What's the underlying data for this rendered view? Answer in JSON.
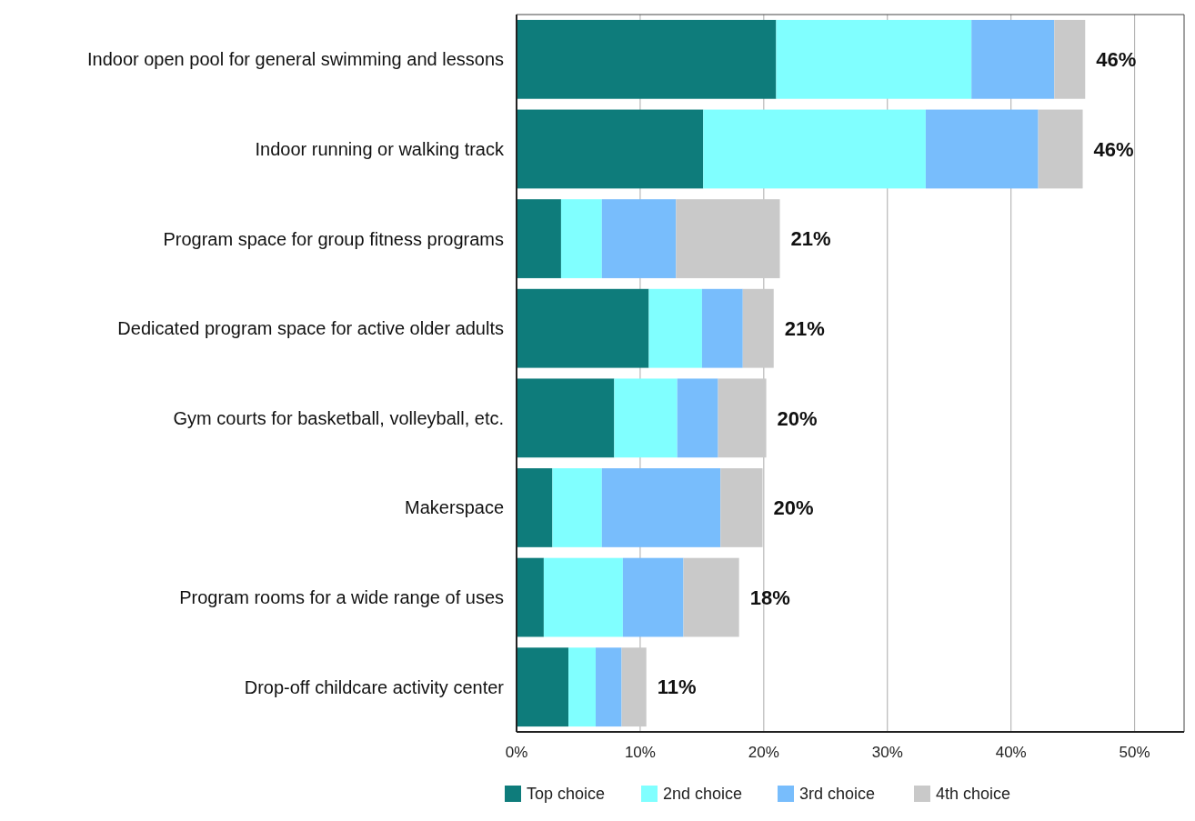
{
  "chart_data": {
    "type": "bar",
    "orientation": "horizontal",
    "stacked": true,
    "categories": [
      "Indoor open pool for general swimming and lessons",
      "Indoor running or walking track",
      "Program space for group fitness programs",
      "Dedicated program space for active older adults",
      "Gym courts for basketball, volleyball, etc.",
      "Makerspace",
      "Program rooms for a wide range of uses",
      "Drop-off childcare activity center"
    ],
    "series": [
      {
        "name": "Top choice",
        "color": "#0e7c7b",
        "values": [
          21.0,
          15.1,
          3.6,
          10.7,
          7.9,
          2.9,
          2.2,
          4.2
        ]
      },
      {
        "name": "2nd choice",
        "color": "#80ffff",
        "values": [
          15.8,
          18.0,
          3.3,
          4.3,
          5.1,
          4.0,
          6.4,
          2.2
        ]
      },
      {
        "name": "3rd choice",
        "color": "#78bdfc",
        "values": [
          6.7,
          9.1,
          6.0,
          3.3,
          3.3,
          9.6,
          4.9,
          2.1
        ]
      },
      {
        "name": "4th choice",
        "color": "#c9c9c9",
        "values": [
          2.5,
          3.6,
          8.4,
          2.5,
          3.9,
          3.4,
          4.5,
          2.0
        ]
      }
    ],
    "totals": [
      "46%",
      "46%",
      "21%",
      "21%",
      "20%",
      "20%",
      "18%",
      "11%"
    ],
    "xlim": [
      0,
      54
    ],
    "xticks": [
      {
        "value": 0,
        "label": "0%"
      },
      {
        "value": 10,
        "label": "10%"
      },
      {
        "value": 20,
        "label": "20%"
      },
      {
        "value": 30,
        "label": "30%"
      },
      {
        "value": 40,
        "label": "40%"
      },
      {
        "value": 50,
        "label": "50%"
      }
    ],
    "grid": "x",
    "legend": "bottom"
  }
}
